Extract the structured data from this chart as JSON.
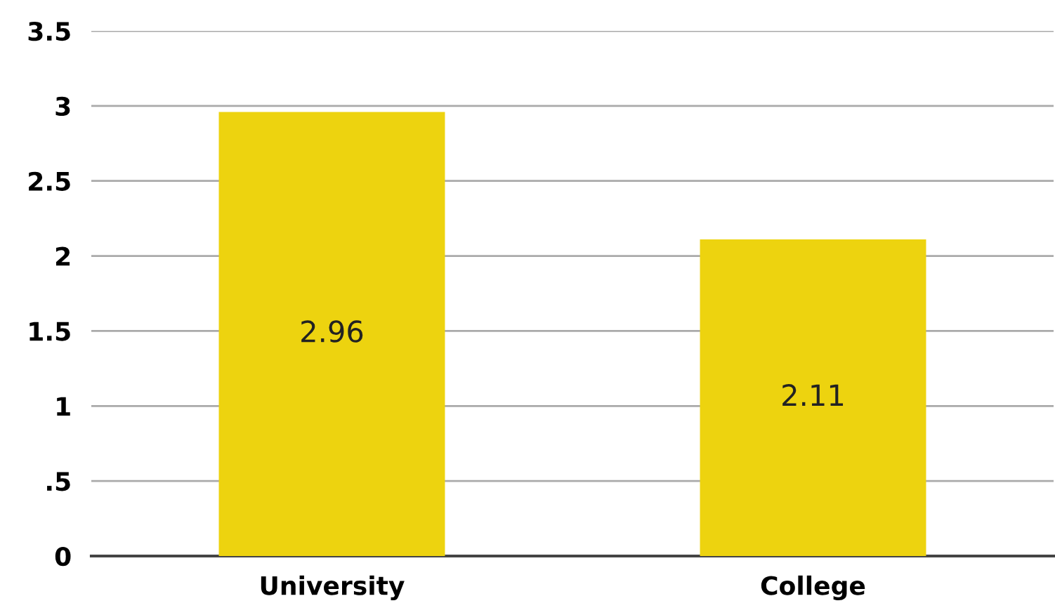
{
  "chart_data": {
    "type": "bar",
    "categories": [
      "University",
      "College"
    ],
    "values": [
      2.96,
      2.11
    ],
    "color": "#edd30f",
    "ylim": [
      0,
      3.5
    ],
    "yticks": [
      0,
      {
        "value": 0.5,
        "label": ".5"
      },
      1,
      1.5,
      2,
      2.5,
      3,
      3.5
    ],
    "grid": "y",
    "data_labels": true
  }
}
